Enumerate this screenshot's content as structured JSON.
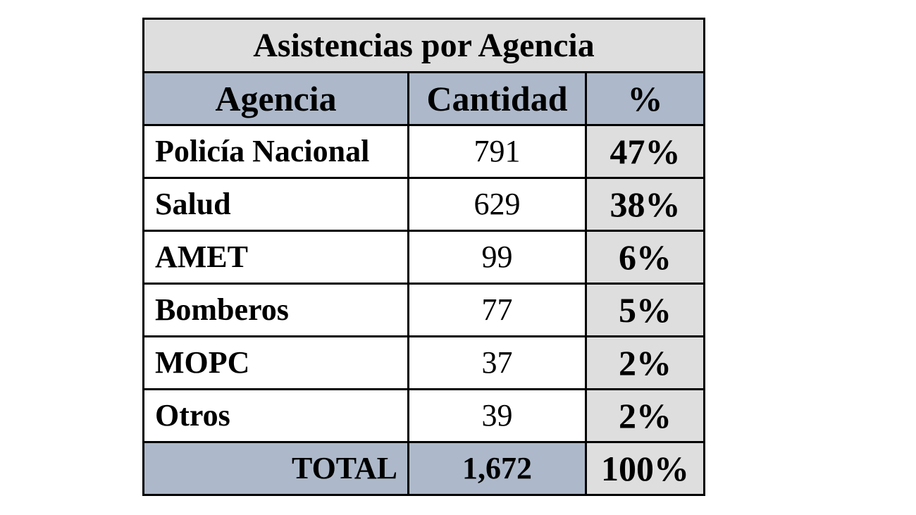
{
  "chart_data": {
    "type": "table",
    "title": "Asistencias por Agencia",
    "columns": [
      "Agencia",
      "Cantidad",
      "%"
    ],
    "rows": [
      {
        "agency": "Policía Nacional",
        "quantity": "791",
        "percent": "47%"
      },
      {
        "agency": "Salud",
        "quantity": "629",
        "percent": "38%"
      },
      {
        "agency": "AMET",
        "quantity": "99",
        "percent": "6%"
      },
      {
        "agency": "Bomberos",
        "quantity": "77",
        "percent": "5%"
      },
      {
        "agency": "MOPC",
        "quantity": "37",
        "percent": "2%"
      },
      {
        "agency": "Otros",
        "quantity": "39",
        "percent": "2%"
      }
    ],
    "total": {
      "label": "TOTAL",
      "quantity": "1,672",
      "percent": "100%"
    }
  },
  "colors": {
    "title_bg": "#dedede",
    "header_bg": "#adb9ca",
    "percent_bg": "#dedede",
    "border": "#000000"
  }
}
